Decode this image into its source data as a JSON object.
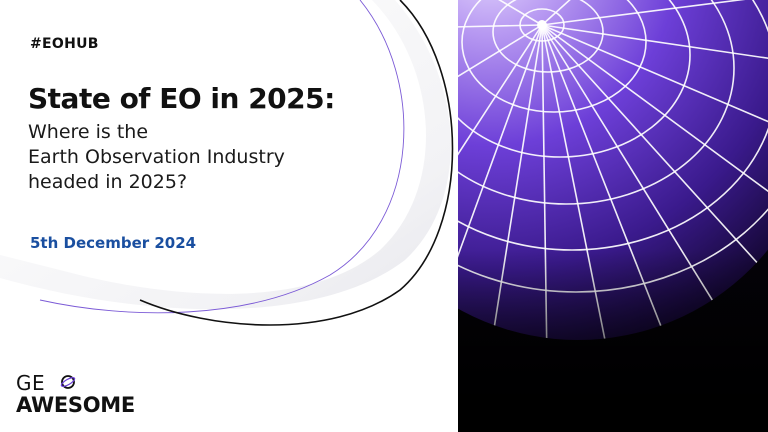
{
  "hashtag": "#EOHUB",
  "title": "State of EO in 2025:",
  "subtitle_lines": [
    "Where is the",
    "Earth Observation Industry",
    "headed in 2025?"
  ],
  "date": "5th December 2024",
  "logo": {
    "line1": "GE",
    "line2": "AWESOME"
  },
  "colors": {
    "accent_blue": "#1a4fa0",
    "globe_purple": "#5b2fd0",
    "text_dark": "#111111"
  },
  "icons": {
    "globe": "wireframe-globe-icon",
    "logo_o": "orbit-ring-icon"
  }
}
